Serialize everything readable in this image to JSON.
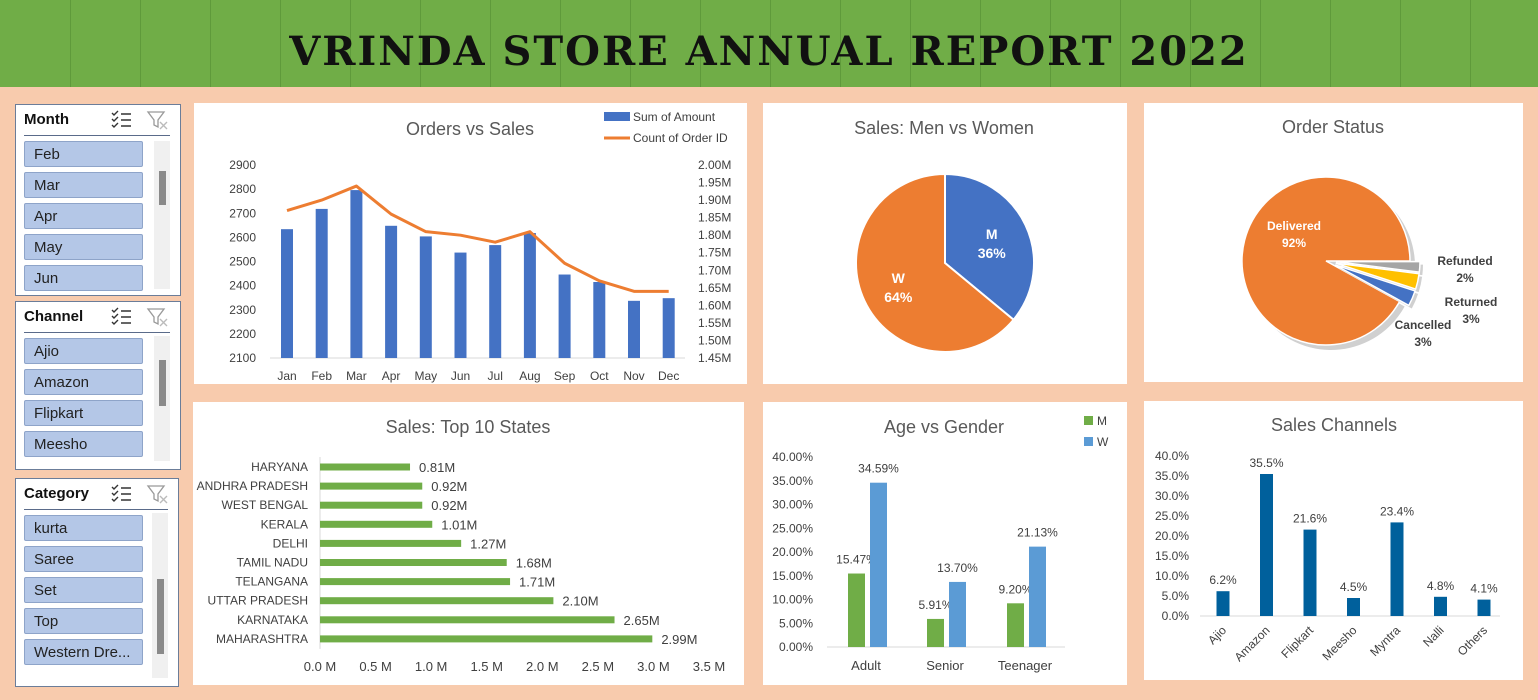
{
  "page_title": "VRINDA STORE ANNUAL REPORT 2022",
  "colors": {
    "banner": "#70ad47",
    "background": "#f8cbad",
    "bar_blue": "#4472c4",
    "line_orange": "#ed7d31",
    "bar_green": "#70ad47",
    "w_blue": "#5b9bd5",
    "channel_blue": "#00609c",
    "slicer_item": "#b4c7e7"
  },
  "slicers": [
    {
      "title": "Month",
      "items": [
        "Feb",
        "Mar",
        "Apr",
        "May",
        "Jun"
      ]
    },
    {
      "title": "Channel",
      "items": [
        "Ajio",
        "Amazon",
        "Flipkart",
        "Meesho"
      ]
    },
    {
      "title": "Category",
      "items": [
        "kurta",
        "Saree",
        "Set",
        "Top",
        "Western Dre..."
      ]
    }
  ],
  "chart_data": [
    {
      "id": "orders_vs_sales",
      "type": "bar+line",
      "title": "Orders vs Sales",
      "categories": [
        "Jan",
        "Feb",
        "Mar",
        "Apr",
        "May",
        "Jun",
        "Jul",
        "Aug",
        "Sep",
        "Oct",
        "Nov",
        "Dec"
      ],
      "series": [
        {
          "name": "Sum of Amount",
          "type": "bar",
          "axis": "left",
          "values": [
            2634,
            2718,
            2796,
            2648,
            2604,
            2537,
            2568,
            2618,
            2446,
            2415,
            2337,
            2348
          ]
        },
        {
          "name": "Count of Order ID",
          "type": "line",
          "axis": "right",
          "values": [
            1.87,
            1.9,
            1.94,
            1.86,
            1.81,
            1.8,
            1.78,
            1.81,
            1.72,
            1.67,
            1.64,
            1.64
          ]
        }
      ],
      "left_ticks": [
        "2900",
        "2800",
        "2700",
        "2600",
        "2500",
        "2400",
        "2300",
        "2200",
        "2100"
      ],
      "left_ylim": [
        2100,
        2900
      ],
      "right_ticks": [
        "2.00M",
        "1.95M",
        "1.90M",
        "1.85M",
        "1.80M",
        "1.75M",
        "1.70M",
        "1.65M",
        "1.60M",
        "1.55M",
        "1.50M",
        "1.45M"
      ],
      "right_ylim": [
        1.45,
        2.0
      ],
      "legend_position": "top-right"
    },
    {
      "id": "men_vs_women",
      "type": "pie",
      "title": "Sales: Men vs Women",
      "slices": [
        {
          "label": "M",
          "pct": "36%",
          "value": 36
        },
        {
          "label": "W",
          "pct": "64%",
          "value": 64
        }
      ]
    },
    {
      "id": "order_status",
      "type": "pie",
      "title": "Order Status",
      "slices": [
        {
          "label": "Delivered",
          "pct": "92%",
          "value": 92
        },
        {
          "label": "Refunded",
          "pct": "2%",
          "value": 2
        },
        {
          "label": "Returned",
          "pct": "3%",
          "value": 3
        },
        {
          "label": "Cancelled",
          "pct": "3%",
          "value": 3
        }
      ]
    },
    {
      "id": "top_states",
      "type": "bar",
      "orientation": "horizontal",
      "title": "Sales: Top 10 States",
      "categories": [
        "HARYANA",
        "ANDHRA PRADESH",
        "WEST BENGAL",
        "KERALA",
        "DELHI",
        "TAMIL NADU",
        "TELANGANA",
        "UTTAR PRADESH",
        "KARNATAKA",
        "MAHARASHTRA"
      ],
      "values": [
        0.81,
        0.92,
        0.92,
        1.01,
        1.27,
        1.68,
        1.71,
        2.1,
        2.65,
        2.99
      ],
      "labels": [
        "0.81M",
        "0.92M",
        "0.92M",
        "1.01M",
        "1.27M",
        "1.68M",
        "1.71M",
        "2.10M",
        "2.65M",
        "2.99M"
      ],
      "x_ticks": [
        "0.0 M",
        "0.5 M",
        "1.0 M",
        "1.5 M",
        "2.0 M",
        "2.5 M",
        "3.0 M",
        "3.5 M"
      ],
      "xlim": [
        0,
        3.5
      ]
    },
    {
      "id": "age_vs_gender",
      "type": "bar",
      "title": "Age vs Gender",
      "categories": [
        "Adult",
        "Senior",
        "Teenager"
      ],
      "series": [
        {
          "name": "M",
          "values": [
            15.47,
            5.91,
            9.2
          ],
          "labels": [
            "15.47%",
            "5.91%",
            "9.20%"
          ]
        },
        {
          "name": "W",
          "values": [
            34.59,
            13.7,
            21.13
          ],
          "labels": [
            "34.59%",
            "13.70%",
            "21.13%"
          ]
        }
      ],
      "y_ticks": [
        "40.00%",
        "35.00%",
        "30.00%",
        "25.00%",
        "20.00%",
        "15.00%",
        "10.00%",
        "5.00%",
        "0.00%"
      ],
      "ylim": [
        0,
        40
      ],
      "legend_position": "top-right"
    },
    {
      "id": "sales_channels",
      "type": "bar",
      "title": "Sales Channels",
      "categories": [
        "Ajio",
        "Amazon",
        "Flipkart",
        "Meesho",
        "Myntra",
        "Nalli",
        "Others"
      ],
      "values": [
        6.2,
        35.5,
        21.6,
        4.5,
        23.4,
        4.8,
        4.1
      ],
      "labels": [
        "6.2%",
        "35.5%",
        "21.6%",
        "4.5%",
        "23.4%",
        "4.8%",
        "4.1%"
      ],
      "y_ticks": [
        "40.0%",
        "35.0%",
        "30.0%",
        "25.0%",
        "20.0%",
        "15.0%",
        "10.0%",
        "5.0%",
        "0.0%"
      ],
      "ylim": [
        0,
        40
      ]
    }
  ]
}
